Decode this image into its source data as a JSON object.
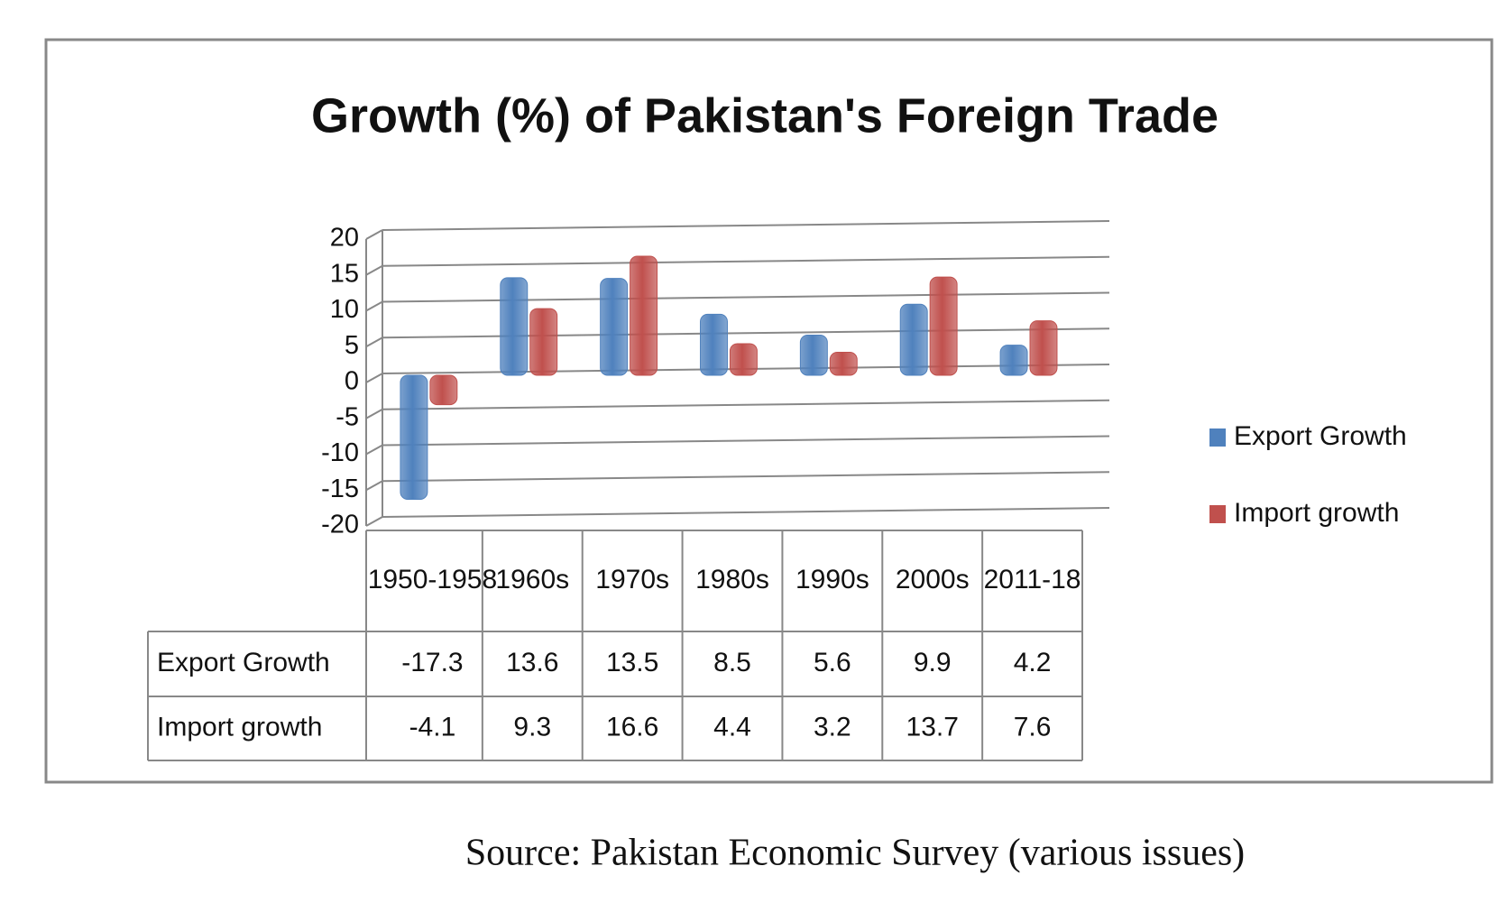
{
  "chart_data": {
    "type": "bar",
    "title": "Growth (%) of Pakistan's Foreign Trade",
    "categories": [
      "1950-1958",
      "1960s",
      "1970s",
      "1980s",
      "1990s",
      "2000s",
      "2011-18"
    ],
    "series": [
      {
        "name": "Export Growth",
        "color": "#4f81bd",
        "values": [
          -17.3,
          13.6,
          13.5,
          8.5,
          5.6,
          9.9,
          4.2
        ]
      },
      {
        "name": "Import growth",
        "color": "#c0504d",
        "values": [
          -4.1,
          9.3,
          16.6,
          4.4,
          3.2,
          13.7,
          7.6
        ]
      }
    ],
    "ylim": [
      -20,
      20
    ],
    "yticks": [
      -20,
      -15,
      -10,
      -5,
      0,
      5,
      10,
      15,
      20
    ],
    "grid": true,
    "legend": "right",
    "source": "Source: Pakistan Economic Survey (various issues)"
  }
}
